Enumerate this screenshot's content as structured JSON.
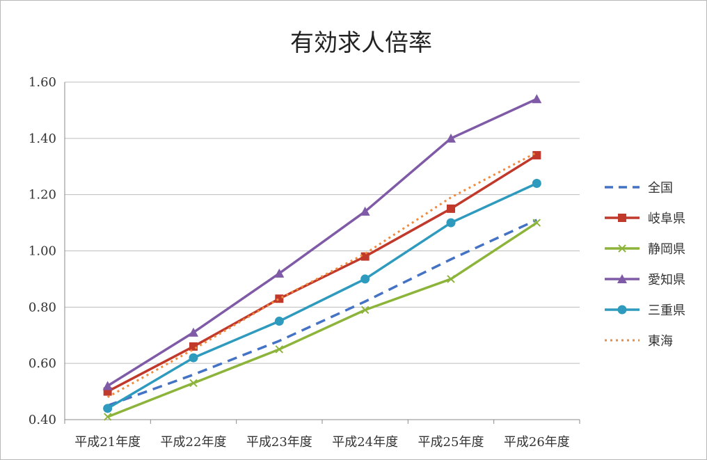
{
  "chart_data": {
    "type": "line",
    "title": "有効求人倍率",
    "xlabel": "",
    "ylabel": "",
    "categories": [
      "平成21年度",
      "平成22年度",
      "平成23年度",
      "平成24年度",
      "平成25年度",
      "平成26年度"
    ],
    "ylim": [
      0.4,
      1.6
    ],
    "yticks": [
      0.4,
      0.6,
      0.8,
      1.0,
      1.2,
      1.4,
      1.6
    ],
    "ytick_labels": [
      "0.40",
      "0.60",
      "0.80",
      "1.00",
      "1.20",
      "1.40",
      "1.60"
    ],
    "grid": true,
    "legend_position": "right",
    "series": [
      {
        "name": "全国",
        "values": [
          0.45,
          0.56,
          0.68,
          0.82,
          0.97,
          1.11
        ],
        "color": "#4472C4",
        "dash": "dashed",
        "marker": "none"
      },
      {
        "name": "岐阜県",
        "values": [
          0.5,
          0.66,
          0.83,
          0.98,
          1.15,
          1.34
        ],
        "color": "#C0392B",
        "dash": "solid",
        "marker": "square"
      },
      {
        "name": "静岡県",
        "values": [
          0.41,
          0.53,
          0.65,
          0.79,
          0.9,
          1.1
        ],
        "color": "#8DB43A",
        "dash": "solid",
        "marker": "x"
      },
      {
        "name": "愛知県",
        "values": [
          0.52,
          0.71,
          0.92,
          1.14,
          1.4,
          1.54
        ],
        "color": "#7F5AA6",
        "dash": "solid",
        "marker": "triangle"
      },
      {
        "name": "三重県",
        "values": [
          0.44,
          0.62,
          0.75,
          0.9,
          1.1,
          1.24
        ],
        "color": "#2E9BBE",
        "dash": "solid",
        "marker": "circle"
      },
      {
        "name": "東海",
        "values": [
          0.48,
          0.65,
          0.83,
          0.99,
          1.19,
          1.35
        ],
        "color": "#F08A3C",
        "dash": "dotted",
        "marker": "none"
      }
    ]
  }
}
